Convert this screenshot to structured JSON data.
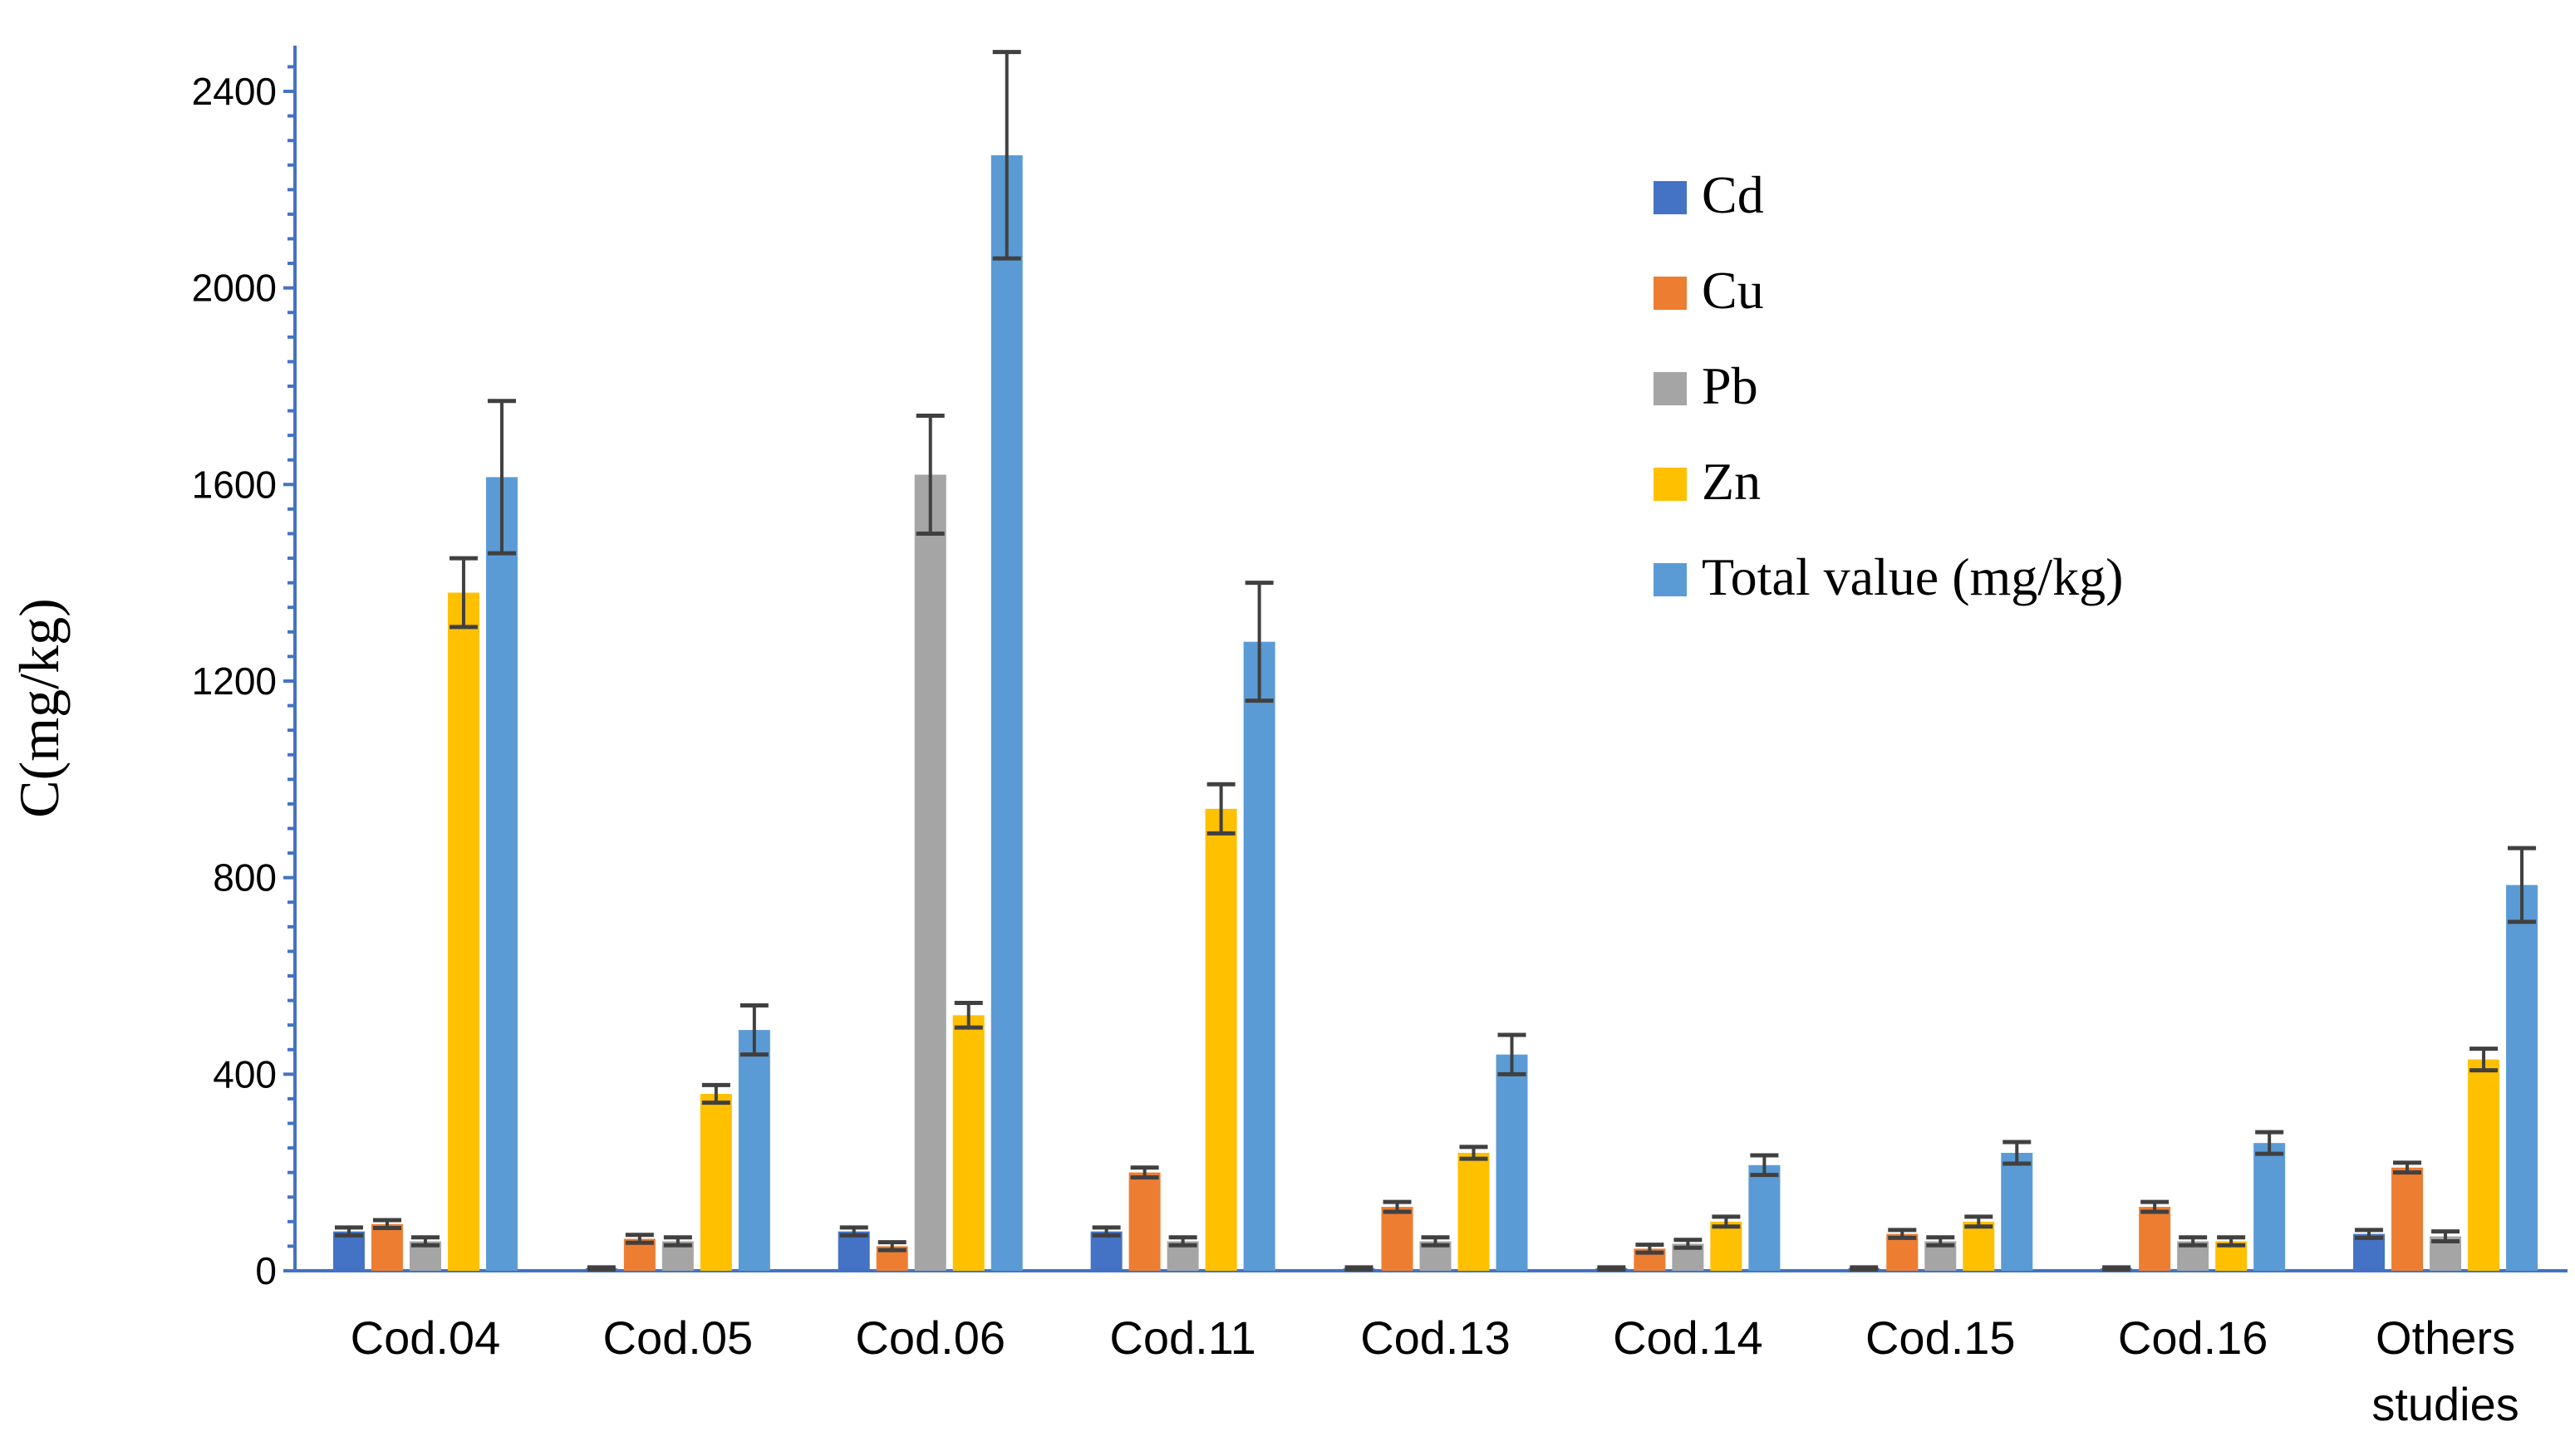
{
  "chart_data": {
    "type": "bar",
    "title": "",
    "xlabel": "",
    "ylabel": "C(mg/kg)",
    "ylim": [
      0,
      2400
    ],
    "yticks": [
      0,
      400,
      800,
      1200,
      1600,
      2000,
      2400
    ],
    "legend_position": "top-right",
    "categories": [
      "Cod.04",
      "Cod.05",
      "Cod.06",
      "Cod.11",
      "Cod.13",
      "Cod.14",
      "Cod.15",
      "Cod.16",
      "Others studies"
    ],
    "series": [
      {
        "name": "Cd",
        "color": "#4472C4",
        "values": [
          80,
          5,
          80,
          80,
          5,
          5,
          5,
          5,
          75
        ],
        "errors": [
          8,
          2,
          8,
          8,
          2,
          2,
          2,
          2,
          8
        ]
      },
      {
        "name": "Cu",
        "color": "#ED7D31",
        "values": [
          95,
          65,
          50,
          200,
          130,
          45,
          75,
          130,
          210
        ],
        "errors": [
          8,
          8,
          8,
          10,
          10,
          8,
          8,
          10,
          10
        ]
      },
      {
        "name": "Pb",
        "color": "#A5A5A5",
        "values": [
          60,
          60,
          1620,
          60,
          60,
          55,
          60,
          60,
          70
        ],
        "errors": [
          8,
          8,
          120,
          8,
          8,
          8,
          8,
          8,
          10
        ]
      },
      {
        "name": "Zn",
        "color": "#FFC000",
        "values": [
          1380,
          360,
          520,
          940,
          240,
          100,
          100,
          60,
          430
        ],
        "errors": [
          70,
          18,
          25,
          50,
          12,
          10,
          10,
          8,
          22
        ]
      },
      {
        "name": "Total value (mg/kg)",
        "color": "#5B9BD5",
        "values": [
          1615,
          490,
          2270,
          1280,
          440,
          215,
          240,
          260,
          785
        ],
        "errors": [
          155,
          50,
          210,
          120,
          40,
          20,
          22,
          22,
          75
        ]
      }
    ]
  }
}
